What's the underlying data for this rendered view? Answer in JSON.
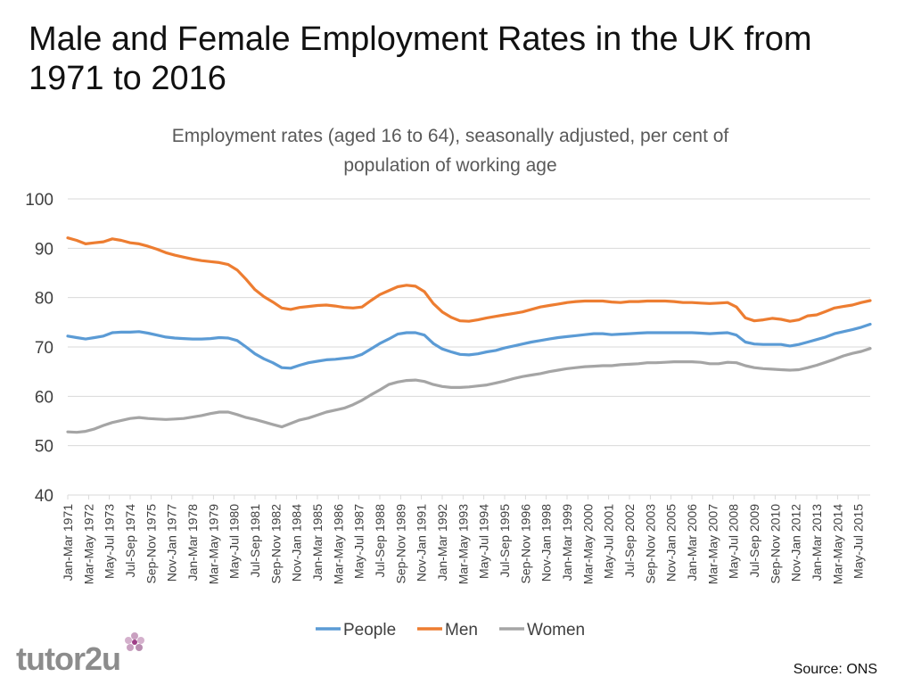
{
  "slide": {
    "title": "Male and Female Employment Rates in the UK from 1971 to 2016",
    "source": "Source: ONS",
    "logo_text": "tutor2u"
  },
  "colors": {
    "people": "#5b9bd5",
    "men": "#ed7d31",
    "women": "#a5a5a5",
    "grid": "#d9d9d9",
    "axis_text": "#595959"
  },
  "chart_data": {
    "type": "line",
    "title_lines": [
      "Employment rates (aged 16 to 64), seasonally adjusted, per cent of",
      "population of working age"
    ],
    "ylim": [
      40,
      100
    ],
    "yticks": [
      40,
      50,
      60,
      70,
      80,
      90,
      100
    ],
    "x_range": [
      1971.0,
      2016.0
    ],
    "tick_labels": [
      "Jan-Mar 1971",
      "Mar-May 1972",
      "May-Jul 1973",
      "Jul-Sep 1974",
      "Sep-Nov 1975",
      "Nov-Jan 1977",
      "Jan-Mar 1978",
      "Mar-May 1979",
      "May-Jul 1980",
      "Jul-Sep 1981",
      "Sep-Nov 1982",
      "Nov-Jan 1984",
      "Jan-Mar 1985",
      "Mar-May 1986",
      "May-Jul 1987",
      "Jul-Sep 1988",
      "Sep-Nov 1989",
      "Nov-Jan 1991",
      "Jan-Mar 1992",
      "Mar-May 1993",
      "May-Jul 1994",
      "Jul-Sep 1995",
      "Sep-Nov 1996",
      "Nov-Jan 1998",
      "Jan-Mar 1999",
      "Mar-May 2000",
      "May-Jul 2001",
      "Jul-Sep 2002",
      "Sep-Nov 2003",
      "Nov-Jan 2005",
      "Jan-Mar 2006",
      "Mar-May 2007",
      "May-Jul 2008",
      "Jul-Sep 2009",
      "Sep-Nov 2010",
      "Nov-Jan 2012",
      "Jan-Mar 2013",
      "Mar-May 2014",
      "May-Jul 2015"
    ],
    "tick_x": [
      1971.0,
      1972.17,
      1973.33,
      1974.5,
      1975.67,
      1976.83,
      1978.0,
      1979.17,
      1980.33,
      1981.5,
      1982.67,
      1983.83,
      1985.0,
      1986.17,
      1987.33,
      1988.5,
      1989.67,
      1990.83,
      1992.0,
      1993.17,
      1994.33,
      1995.5,
      1996.67,
      1997.83,
      1999.0,
      2000.17,
      2001.33,
      2002.5,
      2003.67,
      2004.83,
      2006.0,
      2007.17,
      2008.33,
      2009.5,
      2010.67,
      2011.83,
      2013.0,
      2014.17,
      2015.33
    ],
    "legend": [
      "People",
      "Men",
      "Women"
    ],
    "series": [
      {
        "name": "People",
        "x": [
          1971.0,
          1971.5,
          1972.0,
          1972.5,
          1973.0,
          1973.5,
          1974.0,
          1974.5,
          1975.0,
          1975.5,
          1976.0,
          1976.5,
          1977.0,
          1977.5,
          1978.0,
          1978.5,
          1979.0,
          1979.5,
          1980.0,
          1980.5,
          1981.0,
          1981.5,
          1982.0,
          1982.5,
          1983.0,
          1983.5,
          1984.0,
          1984.5,
          1985.0,
          1985.5,
          1986.0,
          1986.5,
          1987.0,
          1987.5,
          1988.0,
          1988.5,
          1989.0,
          1989.5,
          1990.0,
          1990.5,
          1991.0,
          1991.5,
          1992.0,
          1992.5,
          1993.0,
          1993.5,
          1994.0,
          1994.5,
          1995.0,
          1995.5,
          1996.0,
          1996.5,
          1997.0,
          1997.5,
          1998.0,
          1998.5,
          1999.0,
          1999.5,
          2000.0,
          2000.5,
          2001.0,
          2001.5,
          2002.0,
          2002.5,
          2003.0,
          2003.5,
          2004.0,
          2004.5,
          2005.0,
          2005.5,
          2006.0,
          2006.5,
          2007.0,
          2007.5,
          2008.0,
          2008.5,
          2009.0,
          2009.5,
          2010.0,
          2010.5,
          2011.0,
          2011.5,
          2012.0,
          2012.5,
          2013.0,
          2013.5,
          2014.0,
          2014.5,
          2015.0,
          2015.5,
          2016.0
        ],
        "values": [
          72.2,
          71.9,
          71.6,
          71.9,
          72.2,
          72.9,
          73.0,
          73.0,
          73.1,
          72.8,
          72.4,
          72.0,
          71.8,
          71.7,
          71.6,
          71.6,
          71.7,
          71.9,
          71.8,
          71.3,
          70.0,
          68.6,
          67.6,
          66.8,
          65.8,
          65.7,
          66.3,
          66.8,
          67.1,
          67.4,
          67.5,
          67.7,
          67.9,
          68.5,
          69.6,
          70.7,
          71.6,
          72.6,
          72.9,
          72.9,
          72.4,
          70.7,
          69.6,
          69.0,
          68.5,
          68.4,
          68.6,
          69.0,
          69.3,
          69.8,
          70.2,
          70.6,
          71.0,
          71.3,
          71.6,
          71.9,
          72.1,
          72.3,
          72.5,
          72.7,
          72.7,
          72.5,
          72.6,
          72.7,
          72.8,
          72.9,
          72.9,
          72.9,
          72.9,
          72.9,
          72.9,
          72.8,
          72.7,
          72.8,
          72.9,
          72.4,
          71.0,
          70.6,
          70.5,
          70.5,
          70.5,
          70.2,
          70.5,
          71.0,
          71.5,
          72.0,
          72.7,
          73.1,
          73.5,
          74.0,
          74.6
        ]
      },
      {
        "name": "Men",
        "x": [
          1971.0,
          1971.5,
          1972.0,
          1972.5,
          1973.0,
          1973.5,
          1974.0,
          1974.5,
          1975.0,
          1975.5,
          1976.0,
          1976.5,
          1977.0,
          1977.5,
          1978.0,
          1978.5,
          1979.0,
          1979.5,
          1980.0,
          1980.5,
          1981.0,
          1981.5,
          1982.0,
          1982.5,
          1983.0,
          1983.5,
          1984.0,
          1984.5,
          1985.0,
          1985.5,
          1986.0,
          1986.5,
          1987.0,
          1987.5,
          1988.0,
          1988.5,
          1989.0,
          1989.5,
          1990.0,
          1990.5,
          1991.0,
          1991.5,
          1992.0,
          1992.5,
          1993.0,
          1993.5,
          1994.0,
          1994.5,
          1995.0,
          1995.5,
          1996.0,
          1996.5,
          1997.0,
          1997.5,
          1998.0,
          1998.5,
          1999.0,
          1999.5,
          2000.0,
          2000.5,
          2001.0,
          2001.5,
          2002.0,
          2002.5,
          2003.0,
          2003.5,
          2004.0,
          2004.5,
          2005.0,
          2005.5,
          2006.0,
          2006.5,
          2007.0,
          2007.5,
          2008.0,
          2008.5,
          2009.0,
          2009.5,
          2010.0,
          2010.5,
          2011.0,
          2011.5,
          2012.0,
          2012.5,
          2013.0,
          2013.5,
          2014.0,
          2014.5,
          2015.0,
          2015.5,
          2016.0
        ],
        "values": [
          92.1,
          91.6,
          90.9,
          91.1,
          91.3,
          91.9,
          91.6,
          91.1,
          90.9,
          90.4,
          89.8,
          89.1,
          88.6,
          88.2,
          87.8,
          87.5,
          87.3,
          87.1,
          86.7,
          85.6,
          83.7,
          81.6,
          80.2,
          79.1,
          77.9,
          77.6,
          78.0,
          78.2,
          78.4,
          78.5,
          78.3,
          78.0,
          77.9,
          78.1,
          79.4,
          80.6,
          81.4,
          82.2,
          82.5,
          82.3,
          81.2,
          78.8,
          77.1,
          76.0,
          75.3,
          75.2,
          75.5,
          75.9,
          76.2,
          76.5,
          76.8,
          77.1,
          77.6,
          78.1,
          78.4,
          78.7,
          79.0,
          79.2,
          79.3,
          79.3,
          79.3,
          79.1,
          79.0,
          79.2,
          79.2,
          79.3,
          79.3,
          79.3,
          79.2,
          79.0,
          79.0,
          78.9,
          78.8,
          78.9,
          79.0,
          78.1,
          75.9,
          75.3,
          75.5,
          75.8,
          75.6,
          75.2,
          75.5,
          76.3,
          76.5,
          77.2,
          77.9,
          78.2,
          78.5,
          79.0,
          79.4
        ]
      },
      {
        "name": "Women",
        "x": [
          1971.0,
          1971.5,
          1972.0,
          1972.5,
          1973.0,
          1973.5,
          1974.0,
          1974.5,
          1975.0,
          1975.5,
          1976.0,
          1976.5,
          1977.0,
          1977.5,
          1978.0,
          1978.5,
          1979.0,
          1979.5,
          1980.0,
          1980.5,
          1981.0,
          1981.5,
          1982.0,
          1982.5,
          1983.0,
          1983.5,
          1984.0,
          1984.5,
          1985.0,
          1985.5,
          1986.0,
          1986.5,
          1987.0,
          1987.5,
          1988.0,
          1988.5,
          1989.0,
          1989.5,
          1990.0,
          1990.5,
          1991.0,
          1991.5,
          1992.0,
          1992.5,
          1993.0,
          1993.5,
          1994.0,
          1994.5,
          1995.0,
          1995.5,
          1996.0,
          1996.5,
          1997.0,
          1997.5,
          1998.0,
          1998.5,
          1999.0,
          1999.5,
          2000.0,
          2000.5,
          2001.0,
          2001.5,
          2002.0,
          2002.5,
          2003.0,
          2003.5,
          2004.0,
          2004.5,
          2005.0,
          2005.5,
          2006.0,
          2006.5,
          2007.0,
          2007.5,
          2008.0,
          2008.5,
          2009.0,
          2009.5,
          2010.0,
          2010.5,
          2011.0,
          2011.5,
          2012.0,
          2012.5,
          2013.0,
          2013.5,
          2014.0,
          2014.5,
          2015.0,
          2015.5,
          2016.0
        ],
        "values": [
          52.8,
          52.7,
          52.9,
          53.4,
          54.1,
          54.7,
          55.1,
          55.5,
          55.7,
          55.5,
          55.4,
          55.3,
          55.4,
          55.5,
          55.8,
          56.1,
          56.5,
          56.8,
          56.8,
          56.3,
          55.7,
          55.3,
          54.8,
          54.3,
          53.8,
          54.5,
          55.2,
          55.6,
          56.2,
          56.8,
          57.2,
          57.6,
          58.3,
          59.2,
          60.3,
          61.3,
          62.4,
          62.9,
          63.2,
          63.3,
          63.0,
          62.4,
          62.0,
          61.8,
          61.8,
          61.9,
          62.1,
          62.3,
          62.7,
          63.1,
          63.6,
          64.0,
          64.3,
          64.6,
          65.0,
          65.3,
          65.6,
          65.8,
          66.0,
          66.1,
          66.2,
          66.2,
          66.4,
          66.5,
          66.6,
          66.8,
          66.8,
          66.9,
          67.0,
          67.0,
          67.0,
          66.9,
          66.6,
          66.6,
          66.9,
          66.8,
          66.2,
          65.8,
          65.6,
          65.5,
          65.4,
          65.3,
          65.4,
          65.8,
          66.3,
          66.9,
          67.5,
          68.2,
          68.7,
          69.1,
          69.7
        ]
      }
    ]
  }
}
